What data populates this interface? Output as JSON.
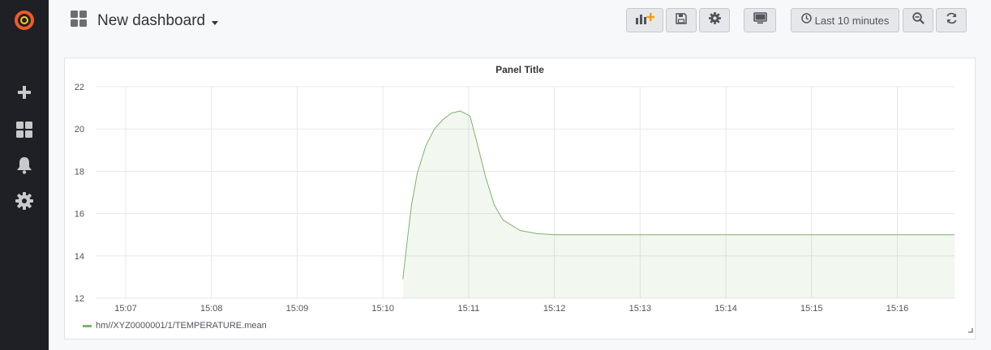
{
  "sidebar": {
    "items": [
      {
        "icon": "grafana-logo-icon"
      },
      {
        "icon": "plus-icon"
      },
      {
        "icon": "dashboards-icon"
      },
      {
        "icon": "bell-icon"
      },
      {
        "icon": "gear-icon"
      }
    ]
  },
  "header": {
    "title": "New dashboard",
    "time_range_label": "Last 10 minutes"
  },
  "panel": {
    "title": "Panel Title",
    "legend": "hm//XYZ0000001/1/TEMPERATURE.mean"
  },
  "colors": {
    "series": "#7eb26d",
    "brand_orange": "#f05a28",
    "sidebar_bg": "#1f2025"
  },
  "chart_data": {
    "type": "area",
    "title": "Panel Title",
    "xlabel": "",
    "ylabel": "",
    "x_ticks": [
      "15:07",
      "15:08",
      "15:09",
      "15:10",
      "15:11",
      "15:12",
      "15:13",
      "15:14",
      "15:15",
      "15:16"
    ],
    "y_ticks": [
      12,
      14,
      16,
      18,
      20,
      22
    ],
    "xlim": [
      "15:06:39",
      "15:16:40"
    ],
    "ylim": [
      12,
      22
    ],
    "grid": true,
    "legend_position": "bottom-left",
    "series": [
      {
        "name": "hm//XYZ0000001/1/TEMPERATURE.mean",
        "x": [
          "15:10:14",
          "15:10:17",
          "15:10:20",
          "15:10:24",
          "15:10:30",
          "15:10:36",
          "15:10:42",
          "15:10:48",
          "15:10:54",
          "15:11:00",
          "15:11:01",
          "15:11:06",
          "15:11:12",
          "15:11:18",
          "15:11:24",
          "15:11:36",
          "15:11:48",
          "15:12:00",
          "15:12:30",
          "15:13:00",
          "15:14:00",
          "15:15:00",
          "15:16:00",
          "15:16:40"
        ],
        "values": [
          12.9,
          14.7,
          16.4,
          17.9,
          19.2,
          20.0,
          20.45,
          20.75,
          20.85,
          20.65,
          20.6,
          19.3,
          17.7,
          16.4,
          15.7,
          15.2,
          15.05,
          15.0,
          15.0,
          15.0,
          15.0,
          15.0,
          15.0,
          15.0
        ]
      }
    ]
  }
}
